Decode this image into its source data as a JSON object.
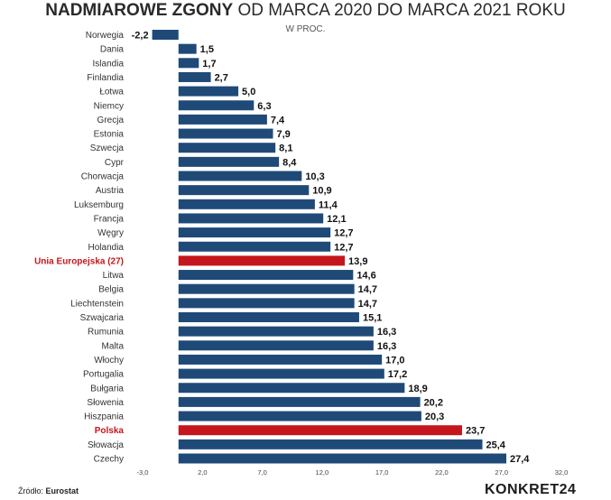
{
  "header": {
    "title_bold": "NADMIAROWE ZGONY",
    "title_rest": "OD MARCA 2020 DO MARCA 2021 ROKU",
    "subtitle": "W PROC."
  },
  "footer": {
    "source_label": "Źródło:",
    "source_value": "Eurostat",
    "brand": "KONKRET24"
  },
  "colors": {
    "bar": "#1f4a78",
    "highlight": "#c4161c",
    "label": "#333333",
    "value": "#111111"
  },
  "chart_data": {
    "type": "bar",
    "orientation": "horizontal",
    "title": "NADMIAROWE ZGONY OD MARCA 2020 DO MARCA 2021 ROKU",
    "subtitle": "W PROC.",
    "xlim": [
      -3.0,
      32.0
    ],
    "ticks": [
      "-3,0",
      "2,0",
      "7,0",
      "12,0",
      "17,0",
      "22,0",
      "27,0",
      "32,0"
    ],
    "highlighted": [
      "Unia Europejska (27)",
      "Polska"
    ],
    "categories": [
      "Norwegia",
      "Dania",
      "Islandia",
      "Finlandia",
      "Łotwa",
      "Niemcy",
      "Grecja",
      "Estonia",
      "Szwecja",
      "Cypr",
      "Chorwacja",
      "Austria",
      "Luksemburg",
      "Francja",
      "Węgry",
      "Holandia",
      "Unia Europejska (27)",
      "Litwa",
      "Belgia",
      "Liechtenstein",
      "Szwajcaria",
      "Rumunia",
      "Malta",
      "Włochy",
      "Portugalia",
      "Bułgaria",
      "Słowenia",
      "Hiszpania",
      "Polska",
      "Słowacja",
      "Czechy"
    ],
    "values": [
      -2.2,
      1.5,
      1.7,
      2.7,
      5.0,
      6.3,
      7.4,
      7.9,
      8.1,
      8.4,
      10.3,
      10.9,
      11.4,
      12.1,
      12.7,
      12.7,
      13.9,
      14.6,
      14.7,
      14.7,
      15.1,
      16.3,
      16.3,
      17.0,
      17.2,
      18.9,
      20.2,
      20.3,
      23.7,
      25.4,
      27.4
    ],
    "value_labels": [
      "-2,2",
      "1,5",
      "1,7",
      "2,7",
      "5,0",
      "6,3",
      "7,4",
      "7,9",
      "8,1",
      "8,4",
      "10,3",
      "10,9",
      "11,4",
      "12,1",
      "12,7",
      "12,7",
      "13,9",
      "14,6",
      "14,7",
      "14,7",
      "15,1",
      "16,3",
      "16,3",
      "17,0",
      "17,2",
      "18,9",
      "20,2",
      "20,3",
      "23,7",
      "25,4",
      "27,4"
    ]
  }
}
